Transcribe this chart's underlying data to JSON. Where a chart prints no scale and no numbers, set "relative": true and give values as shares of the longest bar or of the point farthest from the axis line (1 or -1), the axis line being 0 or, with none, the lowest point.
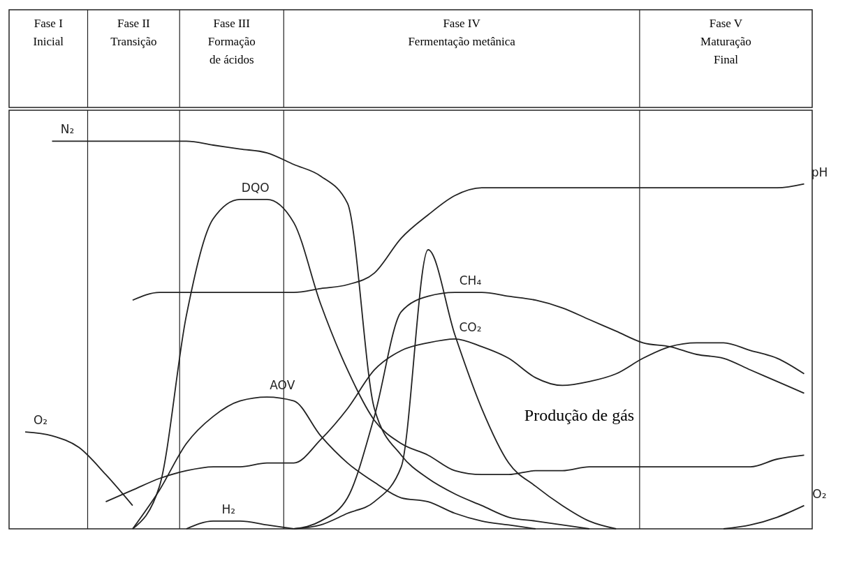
{
  "chart_data": {
    "type": "line",
    "relative": true,
    "categories": [
      null,
      null,
      null,
      null,
      null,
      null,
      null,
      null,
      null,
      null,
      null,
      null,
      null,
      null,
      null,
      null,
      null,
      null,
      null,
      null,
      null,
      null,
      null,
      null,
      null,
      null,
      null,
      null,
      null,
      null
    ],
    "series": [
      {
        "name": "O₂",
        "color": "#222222",
        "values": [
          0.25,
          0.24,
          0.21,
          0.14,
          0.06,
          null,
          null,
          null,
          null,
          null,
          null,
          null,
          null,
          null,
          null,
          null,
          null,
          null,
          null,
          null,
          null,
          null,
          null,
          null,
          null,
          null,
          null,
          null,
          null,
          null
        ]
      },
      {
        "name": "N₂",
        "color": "#222222",
        "values": [
          null,
          1.0,
          1.0,
          1.0,
          1.0,
          1.0,
          1.0,
          0.99,
          0.98,
          0.97,
          0.94,
          0.91,
          0.84,
          0.31,
          0.19,
          0.13,
          0.09,
          0.06,
          0.03,
          0.02,
          0.01,
          0.0,
          null,
          null,
          null,
          null,
          null,
          null,
          null,
          null
        ]
      },
      {
        "name": "DQO",
        "color": "#222222",
        "values": [
          null,
          null,
          null,
          null,
          0.0,
          0.11,
          0.55,
          0.8,
          0.85,
          0.85,
          0.79,
          0.58,
          0.41,
          0.28,
          0.22,
          0.19,
          0.15,
          0.14,
          0.14,
          0.15,
          0.15,
          0.16,
          0.16,
          0.16,
          0.16,
          0.16,
          0.16,
          0.16,
          0.18,
          0.19
        ]
      },
      {
        "name": "AOV",
        "color": "#222222",
        "values": [
          null,
          null,
          null,
          null,
          0.0,
          0.1,
          0.22,
          0.29,
          0.33,
          0.34,
          0.33,
          0.24,
          0.17,
          0.12,
          0.08,
          0.07,
          0.04,
          0.02,
          0.01,
          0.0,
          null,
          null,
          null,
          null,
          null,
          null,
          null,
          null,
          null,
          null
        ]
      },
      {
        "name": "H₂",
        "color": "#222222",
        "values": [
          null,
          null,
          null,
          null,
          null,
          null,
          0.0,
          0.02,
          0.02,
          0.01,
          0.0,
          null,
          null,
          null,
          null,
          null,
          null,
          null,
          null,
          null,
          null,
          null,
          null,
          null,
          null,
          null,
          null,
          null,
          null,
          null
        ]
      },
      {
        "name": "pH",
        "color": "#222222",
        "values": [
          null,
          null,
          null,
          null,
          0.59,
          0.61,
          0.61,
          0.61,
          0.61,
          0.61,
          0.61,
          0.62,
          0.63,
          0.66,
          0.75,
          0.81,
          0.86,
          0.88,
          0.88,
          0.88,
          0.88,
          0.88,
          0.88,
          0.88,
          0.88,
          0.88,
          0.88,
          0.88,
          0.88,
          0.89
        ]
      },
      {
        "name": "CH₄",
        "color": "#222222",
        "values": [
          null,
          null,
          null,
          null,
          null,
          null,
          null,
          null,
          null,
          null,
          0.0,
          0.02,
          0.08,
          0.29,
          0.56,
          0.6,
          0.61,
          0.61,
          0.6,
          0.59,
          0.57,
          0.54,
          0.51,
          0.48,
          0.47,
          0.45,
          0.44,
          0.41,
          0.38,
          0.35
        ]
      },
      {
        "name": "CO₂",
        "color": "#222222",
        "values": [
          null,
          null,
          null,
          0.07,
          0.1,
          0.13,
          0.15,
          0.16,
          0.16,
          0.17,
          0.17,
          0.23,
          0.31,
          0.41,
          0.46,
          0.48,
          0.49,
          0.47,
          0.44,
          0.39,
          0.37,
          0.38,
          0.4,
          0.44,
          0.47,
          0.48,
          0.48,
          0.46,
          0.44,
          0.4
        ]
      },
      {
        "color": "#222222",
        "values": [
          null,
          null,
          null,
          null,
          null,
          null,
          null,
          null,
          null,
          null,
          0.0,
          0.01,
          0.04,
          0.07,
          0.16,
          0.72,
          0.5,
          0.31,
          0.17,
          0.11,
          0.06,
          0.02,
          0.0,
          null,
          null,
          null,
          null,
          null,
          null,
          null
        ]
      },
      {
        "name": "O₂",
        "color": "#222222",
        "values": [
          null,
          null,
          null,
          null,
          null,
          null,
          null,
          null,
          null,
          null,
          null,
          null,
          null,
          null,
          null,
          null,
          null,
          null,
          null,
          null,
          null,
          null,
          null,
          null,
          null,
          null,
          0.0,
          0.01,
          0.03,
          0.06
        ]
      }
    ],
    "annotations": [
      "Fase I\nInicial",
      "Fase II\nTransição",
      "Fase III\nFormação\nde ácidos",
      "Fase IV\nFermentação metânica",
      "Fase V\nMaturação\nFinal",
      "Produção de gás"
    ]
  }
}
